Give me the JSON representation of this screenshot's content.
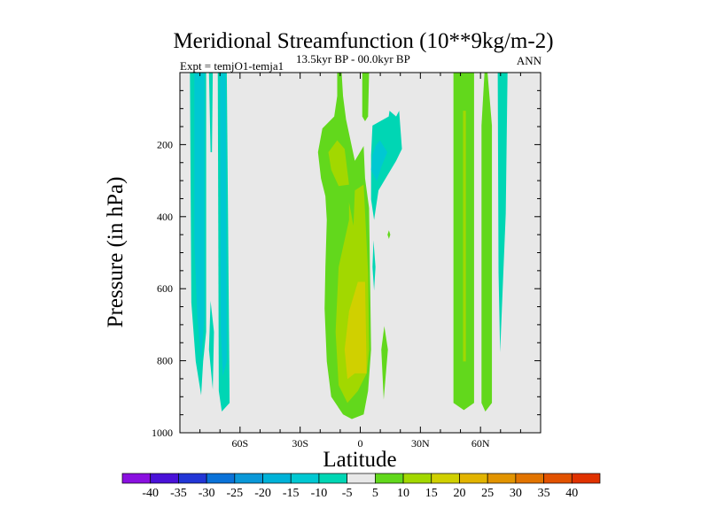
{
  "chart_data": {
    "type": "heatmap",
    "subtype": "filled-contour",
    "title": "Meridional Streamfunction (10**9kg/m-2)",
    "subtitle": "13.5kyr BP - 00.0kyr BP",
    "left_label": "Expt = temjO1-temja1",
    "right_label": "ANN",
    "xlabel": "Latitude",
    "ylabel": "Pressure (in hPa)",
    "xlim": [
      -90,
      90
    ],
    "ylim": [
      1000,
      0
    ],
    "x_ticks": [
      {
        "value": -60,
        "label": "60S"
      },
      {
        "value": -30,
        "label": "30S"
      },
      {
        "value": 0,
        "label": "0"
      },
      {
        "value": 30,
        "label": "30N"
      },
      {
        "value": 60,
        "label": "60N"
      }
    ],
    "y_ticks": [
      {
        "value": 200,
        "label": "200"
      },
      {
        "value": 400,
        "label": "400"
      },
      {
        "value": 600,
        "label": "600"
      },
      {
        "value": 800,
        "label": "800"
      },
      {
        "value": 1000,
        "label": "1000"
      }
    ],
    "colorbar": {
      "labels": [
        "-40",
        "-35",
        "-30",
        "-25",
        "-20",
        "-15",
        "-10",
        "-5",
        "5",
        "10",
        "15",
        "20",
        "25",
        "30",
        "35",
        "40"
      ],
      "colors": [
        "#8a10e0",
        "#4a12d8",
        "#2236d6",
        "#0a72d8",
        "#0a98d8",
        "#00b2d8",
        "#00c8d2",
        "#00d6b4",
        "#e8e8e8",
        "#62d81c",
        "#a2d800",
        "#d0d000",
        "#e2b400",
        "#e29400",
        "#e27400",
        "#e25200",
        "#e03200"
      ]
    },
    "background_level_color": "#e8e8e8",
    "regions": [
      {
        "level": -10,
        "color": "#00d6b4",
        "points": [
          [
            -85,
            0
          ],
          [
            -76.9,
            0
          ],
          [
            -76.9,
            720
          ],
          [
            -78.4,
            802
          ],
          [
            -79.4,
            896
          ],
          [
            -82.1,
            802
          ],
          [
            -84.3,
            638
          ]
        ]
      },
      {
        "level": -15,
        "color": "#00c8d2",
        "points": [
          [
            -82.8,
            0
          ],
          [
            -77.7,
            0
          ],
          [
            -77.7,
            679
          ],
          [
            -79.4,
            802
          ],
          [
            -81.3,
            679
          ],
          [
            -82.8,
            474
          ]
        ]
      },
      {
        "level": -10,
        "color": "#00d6b4",
        "points": [
          [
            -75.5,
            0
          ],
          [
            -73.6,
            0
          ],
          [
            -74,
            221
          ],
          [
            -74.7,
            221
          ]
        ]
      },
      {
        "level": -10,
        "color": "#00d6b4",
        "points": [
          [
            -74.7,
            634
          ],
          [
            -73,
            720
          ],
          [
            -73.6,
            880
          ],
          [
            -75.5,
            769
          ]
        ]
      },
      {
        "level": -10,
        "color": "#00d6b4",
        "points": [
          [
            -71.1,
            0
          ],
          [
            -66.6,
            0
          ],
          [
            -65.2,
            917
          ],
          [
            -69.1,
            941
          ],
          [
            -70.6,
            884
          ]
        ]
      },
      {
        "level": -15,
        "color": "#00c8d2",
        "points": [
          [
            -70,
            0
          ],
          [
            -67.1,
            0
          ],
          [
            -66.6,
            802
          ],
          [
            -68.6,
            843
          ],
          [
            -69.6,
            720
          ]
        ]
      },
      {
        "level": 5,
        "color": "#62d81c",
        "points": [
          [
            -11.5,
            0
          ],
          [
            -9.3,
            0
          ],
          [
            -8.6,
            65
          ],
          [
            -7.1,
            130
          ],
          [
            -2.7,
            245
          ],
          [
            1.7,
            204
          ],
          [
            2.4,
            294
          ],
          [
            4.4,
            376
          ],
          [
            5.4,
            769
          ],
          [
            3.9,
            884
          ],
          [
            1.7,
            949
          ],
          [
            -4.2,
            962
          ],
          [
            -8.6,
            949
          ],
          [
            -14.5,
            900
          ],
          [
            -16.7,
            802
          ],
          [
            -17.8,
            655
          ],
          [
            -17.4,
            540
          ],
          [
            -16.7,
            409
          ],
          [
            -17.4,
            343
          ],
          [
            -19.6,
            294
          ],
          [
            -21.1,
            221
          ],
          [
            -18.9,
            155
          ],
          [
            -13,
            122
          ],
          [
            -11.5,
            65
          ]
        ]
      },
      {
        "level": 10,
        "color": "#a2d800",
        "points": [
          [
            -15.9,
            221
          ],
          [
            -11.5,
            188
          ],
          [
            -7.8,
            212
          ],
          [
            -5.6,
            311
          ],
          [
            -10.8,
            315
          ],
          [
            -14.5,
            270
          ]
        ]
      },
      {
        "level": 10,
        "color": "#a2d800",
        "points": [
          [
            -2.7,
            327
          ],
          [
            1.7,
            311
          ],
          [
            3.9,
            556
          ],
          [
            4.4,
            769
          ],
          [
            3.2,
            835
          ],
          [
            -1.2,
            884
          ],
          [
            -6.4,
            917
          ],
          [
            -10.8,
            868
          ],
          [
            -12.3,
            720
          ],
          [
            -10.8,
            540
          ],
          [
            -5.6,
            409
          ],
          [
            -5.6,
            360
          ],
          [
            -3.4,
            425
          ]
        ]
      },
      {
        "level": 15,
        "color": "#d0d000",
        "points": [
          [
            -1.2,
            581
          ],
          [
            2.4,
            581
          ],
          [
            3.2,
            835
          ],
          [
            -2.7,
            835
          ],
          [
            -6.4,
            851
          ],
          [
            -7.8,
            769
          ],
          [
            -5.6,
            663
          ]
        ]
      },
      {
        "level": 5,
        "color": "#62d81c",
        "points": [
          [
            1,
            0
          ],
          [
            4.4,
            0
          ],
          [
            3.9,
            122
          ],
          [
            2.4,
            135
          ],
          [
            1,
            122
          ]
        ]
      },
      {
        "level": -10,
        "color": "#00d6b4",
        "points": [
          [
            6.1,
            147
          ],
          [
            14.2,
            122
          ],
          [
            14.6,
            106
          ],
          [
            17.9,
            122
          ],
          [
            19.4,
            106
          ],
          [
            20.8,
            212
          ],
          [
            17.9,
            245
          ],
          [
            13.5,
            286
          ],
          [
            9.1,
            327
          ],
          [
            6.9,
            409
          ],
          [
            5.4,
            352
          ],
          [
            5.4,
            229
          ]
        ]
      },
      {
        "level": -15,
        "color": "#00c8d2",
        "points": [
          [
            7.6,
            204
          ],
          [
            9.8,
            188
          ],
          [
            13.5,
            221
          ],
          [
            10.5,
            262
          ],
          [
            8.3,
            302
          ],
          [
            5.4,
            270
          ],
          [
            6.1,
            229
          ]
        ]
      },
      {
        "level": -10,
        "color": "#00d6b4",
        "points": [
          [
            6.6,
            466
          ],
          [
            7.6,
            540
          ],
          [
            6.9,
            605
          ],
          [
            6.1,
            540
          ]
        ]
      },
      {
        "level": 5,
        "color": "#62d81c",
        "points": [
          [
            14.3,
            438
          ],
          [
            15,
            450
          ],
          [
            14.3,
            462
          ],
          [
            13.6,
            450
          ]
        ]
      },
      {
        "level": 5,
        "color": "#62d81c",
        "points": [
          [
            12,
            704
          ],
          [
            13.8,
            769
          ],
          [
            11.7,
            908
          ],
          [
            10.5,
            769
          ]
        ]
      },
      {
        "level": 5,
        "color": "#62d81c",
        "points": [
          [
            46.5,
            0
          ],
          [
            56.8,
            0
          ],
          [
            56.8,
            917
          ],
          [
            51.7,
            937
          ],
          [
            46.5,
            917
          ]
        ]
      },
      {
        "level": 10,
        "color": "#a2d800",
        "points": [
          [
            51.3,
            106
          ],
          [
            52.7,
            106
          ],
          [
            52.7,
            802
          ],
          [
            51.3,
            802
          ]
        ]
      },
      {
        "level": 5,
        "color": "#62d81c",
        "points": [
          [
            62,
            0
          ],
          [
            63.5,
            0
          ],
          [
            65.7,
            147
          ],
          [
            65.7,
            917
          ],
          [
            62.4,
            941
          ],
          [
            60.5,
            917
          ],
          [
            60.5,
            147
          ]
        ]
      },
      {
        "level": -10,
        "color": "#00d6b4",
        "points": [
          [
            68.6,
            0
          ],
          [
            73.5,
            0
          ],
          [
            72.6,
            392
          ],
          [
            70.8,
            638
          ],
          [
            69.8,
            777
          ],
          [
            69,
            556
          ]
        ]
      }
    ]
  }
}
